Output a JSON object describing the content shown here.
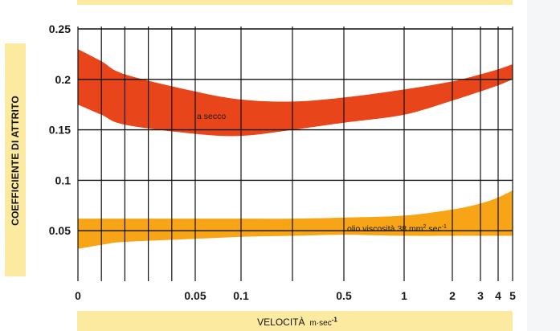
{
  "chart_data": {
    "type": "area",
    "xlabel": "VELOCITÀ",
    "xlabel_unit": "m·sec",
    "xlabel_unit_exp": "-1",
    "ylabel": "COEFFICIENTE DI ATTRITO",
    "ylim": [
      0,
      0.25
    ],
    "y_ticks": [
      "0.05",
      "0.1",
      "0.15",
      "0.2",
      "0.25"
    ],
    "x_ticks": [
      "0",
      "0.05",
      "0.1",
      "0.5",
      "1",
      "2",
      "3",
      "4",
      "5"
    ],
    "grid": true,
    "series": [
      {
        "name": "a secco",
        "color": "#e8451a",
        "x": [
          0,
          0.01,
          0.02,
          0.05,
          0.1,
          0.3,
          0.5,
          1,
          2,
          3,
          4,
          5
        ],
        "upper": [
          0.23,
          0.218,
          0.205,
          0.188,
          0.18,
          0.178,
          0.182,
          0.19,
          0.198,
          0.205,
          0.21,
          0.215
        ],
        "lower": [
          0.175,
          0.165,
          0.155,
          0.146,
          0.144,
          0.15,
          0.157,
          0.165,
          0.179,
          0.188,
          0.194,
          0.2
        ]
      },
      {
        "name": "olio viscosità 38 mm² sec⁻¹",
        "color": "#f7a416",
        "x": [
          0,
          0.01,
          0.02,
          0.05,
          0.1,
          0.3,
          0.5,
          1,
          2,
          3,
          4,
          5
        ],
        "upper": [
          0.062,
          0.062,
          0.062,
          0.062,
          0.062,
          0.062,
          0.063,
          0.065,
          0.071,
          0.077,
          0.083,
          0.09
        ],
        "lower": [
          0.032,
          0.036,
          0.039,
          0.042,
          0.044,
          0.045,
          0.046,
          0.045,
          0.045,
          0.045,
          0.045,
          0.045
        ]
      }
    ],
    "annotations": [
      {
        "text": "a secco",
        "x": 0.3,
        "y": 0.163
      },
      {
        "text": "olio viscosità 38 mm",
        "sup1": "2",
        "text2": " sec",
        "sup2": "-1",
        "x": 2,
        "y": 0.055
      }
    ]
  }
}
